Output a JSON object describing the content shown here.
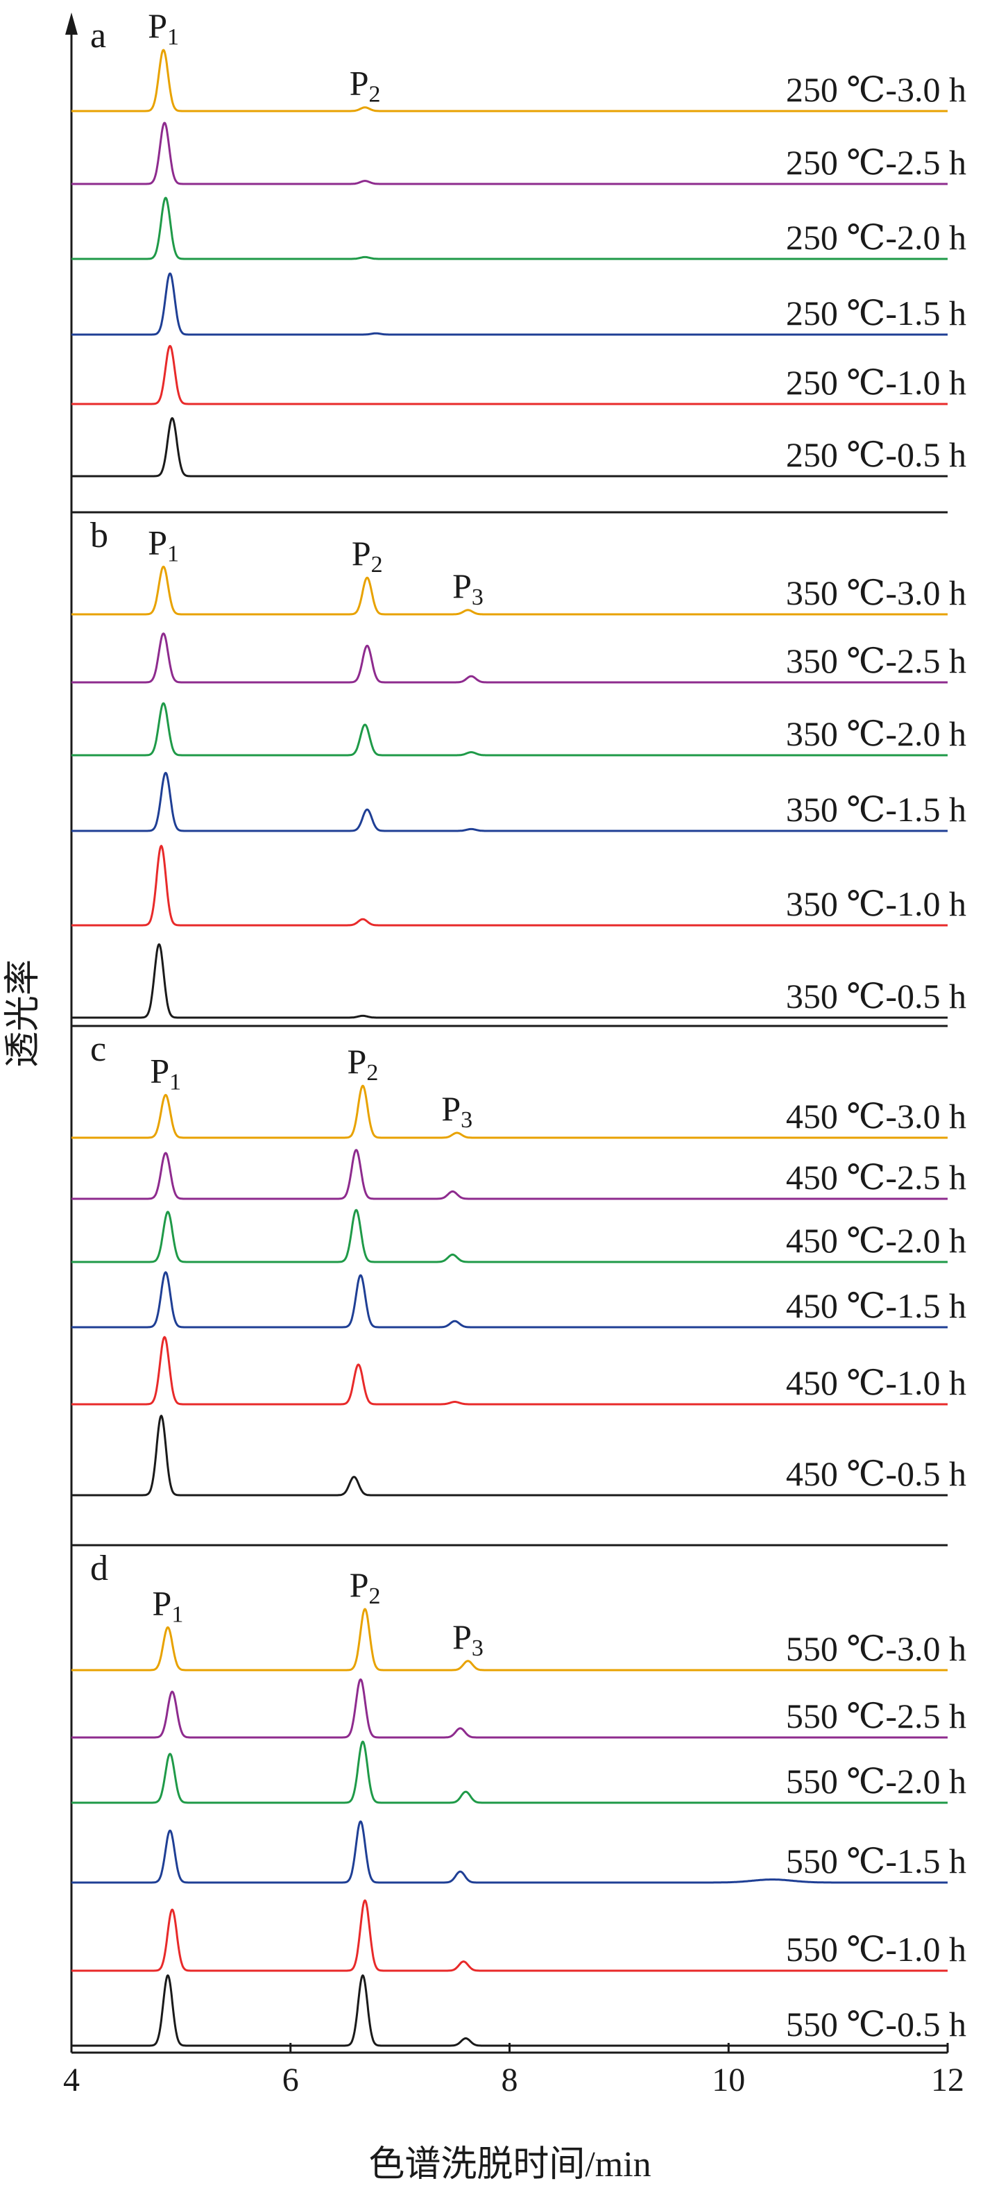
{
  "chart_data": {
    "type": "line",
    "xlabel": "色谱洗脱时间/min",
    "ylabel": "透光率",
    "xlim": [
      4,
      12
    ],
    "xticks": [
      4,
      6,
      8,
      10,
      12
    ],
    "grid": false,
    "panels": [
      {
        "label": "a",
        "peaks": [
          {
            "name": "P",
            "sub": "1",
            "x": 4.84
          },
          {
            "name": "P",
            "sub": "2",
            "x": 6.68
          }
        ],
        "series": [
          {
            "name": "250 ℃-3.0 h",
            "color": "#e8a200",
            "peaks": [
              {
                "x": 4.84,
                "h": 1.0
              },
              {
                "x": 6.68,
                "h": 0.06
              }
            ]
          },
          {
            "name": "250 ℃-2.5 h",
            "color": "#8e2b8e",
            "peaks": [
              {
                "x": 4.85,
                "h": 1.0
              },
              {
                "x": 6.68,
                "h": 0.05
              }
            ]
          },
          {
            "name": "250 ℃-2.0 h",
            "color": "#1f9a48",
            "peaks": [
              {
                "x": 4.86,
                "h": 1.0
              },
              {
                "x": 6.68,
                "h": 0.03
              }
            ]
          },
          {
            "name": "250 ℃-1.5 h",
            "color": "#1f3f95",
            "peaks": [
              {
                "x": 4.9,
                "h": 1.0
              },
              {
                "x": 6.78,
                "h": 0.02
              }
            ]
          },
          {
            "name": "250 ℃-1.0 h",
            "color": "#e82a2a",
            "peaks": [
              {
                "x": 4.9,
                "h": 0.95
              }
            ]
          },
          {
            "name": "250 ℃-0.5 h",
            "color": "#1a1a1a",
            "peaks": [
              {
                "x": 4.92,
                "h": 0.95
              }
            ]
          }
        ]
      },
      {
        "label": "b",
        "peaks": [
          {
            "name": "P",
            "sub": "1",
            "x": 4.84
          },
          {
            "name": "P",
            "sub": "2",
            "x": 6.7
          },
          {
            "name": "P",
            "sub": "3",
            "x": 7.62
          }
        ],
        "series": [
          {
            "name": "350 ℃-3.0 h",
            "color": "#e8a200",
            "peaks": [
              {
                "x": 4.84,
                "h": 0.78
              },
              {
                "x": 6.7,
                "h": 0.6
              },
              {
                "x": 7.62,
                "h": 0.07
              }
            ]
          },
          {
            "name": "350 ℃-2.5 h",
            "color": "#8e2b8e",
            "peaks": [
              {
                "x": 4.84,
                "h": 0.8
              },
              {
                "x": 6.7,
                "h": 0.6
              },
              {
                "x": 7.65,
                "h": 0.1
              }
            ]
          },
          {
            "name": "350 ℃-2.0 h",
            "color": "#1f9a48",
            "peaks": [
              {
                "x": 4.84,
                "h": 0.85
              },
              {
                "x": 6.68,
                "h": 0.5
              },
              {
                "x": 7.65,
                "h": 0.05
              }
            ]
          },
          {
            "name": "350 ℃-1.5 h",
            "color": "#1f3f95",
            "peaks": [
              {
                "x": 4.86,
                "h": 0.95
              },
              {
                "x": 6.7,
                "h": 0.35
              },
              {
                "x": 7.65,
                "h": 0.03
              }
            ]
          },
          {
            "name": "350 ℃-1.0 h",
            "color": "#e82a2a",
            "peaks": [
              {
                "x": 4.82,
                "h": 1.3
              },
              {
                "x": 6.66,
                "h": 0.1
              }
            ]
          },
          {
            "name": "350 ℃-0.5 h",
            "color": "#1a1a1a",
            "peaks": [
              {
                "x": 4.8,
                "h": 1.2
              },
              {
                "x": 6.66,
                "h": 0.03
              }
            ]
          }
        ]
      },
      {
        "label": "c",
        "peaks": [
          {
            "name": "P",
            "sub": "1",
            "x": 4.86
          },
          {
            "name": "P",
            "sub": "2",
            "x": 6.66
          },
          {
            "name": "P",
            "sub": "3",
            "x": 7.52
          }
        ],
        "series": [
          {
            "name": "450 ℃-3.0 h",
            "color": "#e8a200",
            "peaks": [
              {
                "x": 4.86,
                "h": 0.7
              },
              {
                "x": 6.66,
                "h": 0.85
              },
              {
                "x": 7.52,
                "h": 0.08
              }
            ]
          },
          {
            "name": "450 ℃-2.5 h",
            "color": "#8e2b8e",
            "peaks": [
              {
                "x": 4.86,
                "h": 0.75
              },
              {
                "x": 6.6,
                "h": 0.8
              },
              {
                "x": 7.48,
                "h": 0.12
              }
            ]
          },
          {
            "name": "450 ℃-2.0 h",
            "color": "#1f9a48",
            "peaks": [
              {
                "x": 4.88,
                "h": 0.82
              },
              {
                "x": 6.6,
                "h": 0.85
              },
              {
                "x": 7.48,
                "h": 0.12
              }
            ]
          },
          {
            "name": "450 ℃-1.5 h",
            "color": "#1f3f95",
            "peaks": [
              {
                "x": 4.86,
                "h": 0.9
              },
              {
                "x": 6.64,
                "h": 0.85
              },
              {
                "x": 7.5,
                "h": 0.1
              }
            ]
          },
          {
            "name": "450 ℃-1.0 h",
            "color": "#e82a2a",
            "peaks": [
              {
                "x": 4.85,
                "h": 1.1
              },
              {
                "x": 6.62,
                "h": 0.65
              },
              {
                "x": 7.5,
                "h": 0.04
              }
            ]
          },
          {
            "name": "450 ℃-0.5 h",
            "color": "#1a1a1a",
            "peaks": [
              {
                "x": 4.82,
                "h": 1.3
              },
              {
                "x": 6.58,
                "h": 0.3
              }
            ]
          }
        ]
      },
      {
        "label": "d",
        "peaks": [
          {
            "name": "P",
            "sub": "1",
            "x": 4.88
          },
          {
            "name": "P",
            "sub": "2",
            "x": 6.68
          },
          {
            "name": "P",
            "sub": "3",
            "x": 7.62
          }
        ],
        "series": [
          {
            "name": "550 ℃-3.0 h",
            "color": "#e8a200",
            "peaks": [
              {
                "x": 4.88,
                "h": 0.7
              },
              {
                "x": 6.68,
                "h": 1.0
              },
              {
                "x": 7.62,
                "h": 0.15
              }
            ]
          },
          {
            "name": "550 ℃-2.5 h",
            "color": "#8e2b8e",
            "peaks": [
              {
                "x": 4.92,
                "h": 0.75
              },
              {
                "x": 6.64,
                "h": 0.95
              },
              {
                "x": 7.55,
                "h": 0.15
              }
            ]
          },
          {
            "name": "550 ℃-2.0 h",
            "color": "#1f9a48",
            "peaks": [
              {
                "x": 4.9,
                "h": 0.8
              },
              {
                "x": 6.66,
                "h": 1.0
              },
              {
                "x": 7.6,
                "h": 0.18
              }
            ]
          },
          {
            "name": "550 ℃-1.5 h",
            "color": "#1f3f95",
            "peaks": [
              {
                "x": 4.9,
                "h": 0.85
              },
              {
                "x": 6.64,
                "h": 1.0
              },
              {
                "x": 7.55,
                "h": 0.18
              },
              {
                "x": 10.4,
                "h": 0.05
              }
            ]
          },
          {
            "name": "550 ℃-1.0 h",
            "color": "#e82a2a",
            "peaks": [
              {
                "x": 4.92,
                "h": 1.0
              },
              {
                "x": 6.68,
                "h": 1.15
              },
              {
                "x": 7.58,
                "h": 0.15
              }
            ]
          },
          {
            "name": "550 ℃-0.5 h",
            "color": "#1a1a1a",
            "peaks": [
              {
                "x": 4.88,
                "h": 1.15
              },
              {
                "x": 6.66,
                "h": 1.15
              },
              {
                "x": 7.6,
                "h": 0.12
              }
            ]
          }
        ]
      }
    ]
  }
}
